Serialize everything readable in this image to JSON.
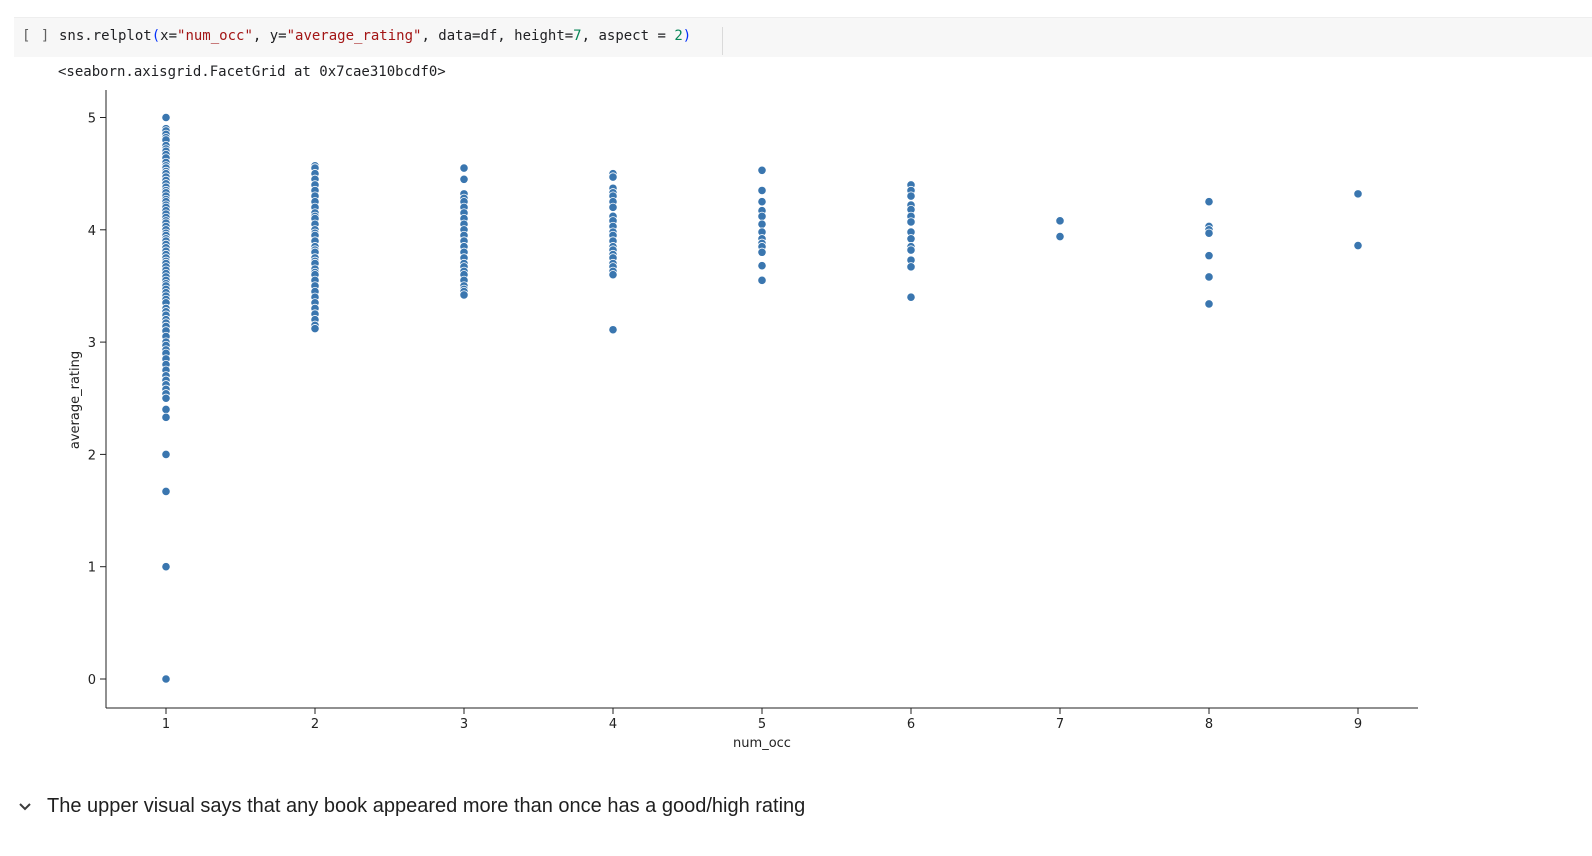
{
  "code_cell": {
    "run_bracket": "[ ]",
    "code": {
      "t1": "sns.relplot",
      "t2": "(",
      "t3": "x=",
      "t4": "\"num_occ\"",
      "t5": ", y=",
      "t6": "\"average_rating\"",
      "t7": ", data=df, height=",
      "t8": "7",
      "t9": ", aspect = ",
      "t10": "2",
      "t11": ")"
    }
  },
  "output": {
    "repr": "<seaborn.axisgrid.FacetGrid at 0x7cae310bcdf0>"
  },
  "chart_data": {
    "type": "scatter",
    "xlabel": "num_occ",
    "ylabel": "average_rating",
    "x_ticks": [
      "1",
      "2",
      "3",
      "4",
      "5",
      "6",
      "7",
      "8",
      "9"
    ],
    "y_ticks": [
      "0",
      "1",
      "2",
      "3",
      "4",
      "5"
    ],
    "xlim": [
      0.6,
      9.4
    ],
    "ylim": [
      -0.25,
      5.25
    ],
    "grid": false,
    "marker_color": "#3a76af",
    "points": {
      "1": [
        5.0,
        4.9,
        4.88,
        4.85,
        4.82,
        4.8,
        4.75,
        4.72,
        4.7,
        4.67,
        4.64,
        4.6,
        4.57,
        4.55,
        4.52,
        4.5,
        4.47,
        4.44,
        4.41,
        4.38,
        4.35,
        4.33,
        4.3,
        4.27,
        4.25,
        4.22,
        4.2,
        4.17,
        4.14,
        4.11,
        4.08,
        4.06,
        4.03,
        4.0,
        3.97,
        3.95,
        3.92,
        3.9,
        3.87,
        3.84,
        3.81,
        3.78,
        3.75,
        3.72,
        3.7,
        3.67,
        3.64,
        3.61,
        3.58,
        3.55,
        3.52,
        3.5,
        3.47,
        3.44,
        3.41,
        3.38,
        3.35,
        3.3,
        3.27,
        3.24,
        3.2,
        3.17,
        3.14,
        3.1,
        3.05,
        3.0,
        2.97,
        2.93,
        2.9,
        2.85,
        2.8,
        2.75,
        2.7,
        2.66,
        2.62,
        2.58,
        2.54,
        2.5,
        2.4,
        2.33,
        2.0,
        1.67,
        1.0,
        0.0
      ],
      "2": [
        4.57,
        4.55,
        4.5,
        4.45,
        4.4,
        4.35,
        4.3,
        4.25,
        4.2,
        4.15,
        4.12,
        4.1,
        4.05,
        4.0,
        3.97,
        3.95,
        3.9,
        3.85,
        3.82,
        3.8,
        3.75,
        3.72,
        3.7,
        3.65,
        3.62,
        3.6,
        3.55,
        3.5,
        3.45,
        3.4,
        3.35,
        3.3,
        3.25,
        3.2,
        3.15,
        3.12
      ],
      "3": [
        4.55,
        4.45,
        4.32,
        4.28,
        4.25,
        4.2,
        4.15,
        4.1,
        4.05,
        4.0,
        3.95,
        3.9,
        3.85,
        3.8,
        3.75,
        3.7,
        3.67,
        3.63,
        3.6,
        3.55,
        3.5,
        3.47,
        3.45,
        3.42
      ],
      "4": [
        4.5,
        4.47,
        4.37,
        4.33,
        4.3,
        4.25,
        4.2,
        4.12,
        4.08,
        4.03,
        3.98,
        3.95,
        3.9,
        3.85,
        3.82,
        3.78,
        3.75,
        3.7,
        3.67,
        3.63,
        3.6,
        3.11
      ],
      "5": [
        4.53,
        4.35,
        4.25,
        4.17,
        4.12,
        4.05,
        3.98,
        3.92,
        3.88,
        3.85,
        3.8,
        3.68,
        3.55
      ],
      "6": [
        4.4,
        4.35,
        4.3,
        4.22,
        4.18,
        4.12,
        4.07,
        3.98,
        3.92,
        3.85,
        3.82,
        3.73,
        3.67,
        3.4
      ],
      "7": [
        4.08,
        3.94
      ],
      "8": [
        4.25,
        4.03,
        4.0,
        3.97,
        3.77,
        3.58,
        3.34
      ],
      "9": [
        4.32,
        3.86
      ]
    }
  },
  "markdown": {
    "chevron_icon": "chevron-down-icon",
    "heading": "The upper visual says that any book appeared more than once has a good/high rating"
  }
}
